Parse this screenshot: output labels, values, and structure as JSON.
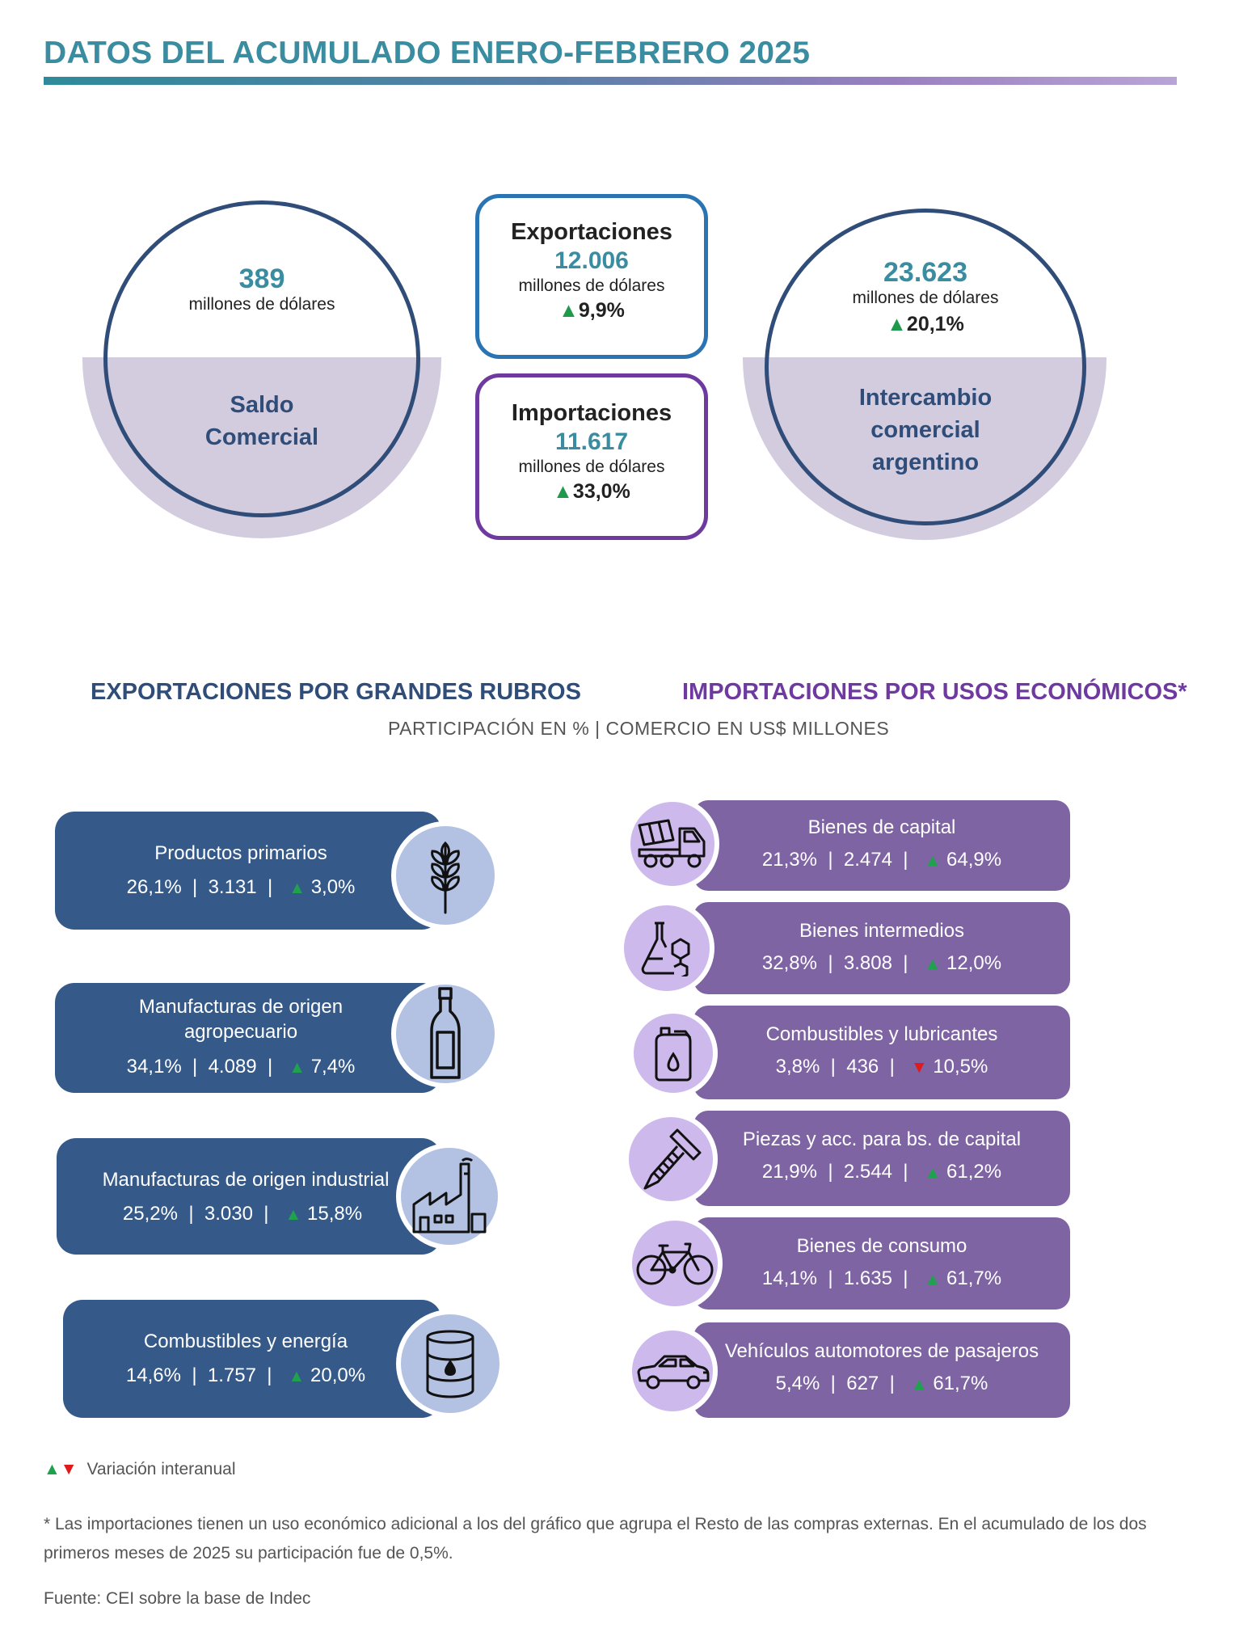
{
  "header": {
    "title": "DATOS DEL ACUMULADO ENERO-FEBRERO 2025"
  },
  "saldo": {
    "value": "389",
    "unit": "millones de dólares",
    "label_1": "Saldo",
    "label_2": "Comercial"
  },
  "exportaciones": {
    "title": "Exportaciones",
    "value": "12.006",
    "unit": "millones de dólares",
    "variation": "9,9%"
  },
  "importaciones": {
    "title": "Importaciones",
    "value": "11.617",
    "unit": "millones de dólares",
    "variation": "33,0%"
  },
  "intercambio": {
    "value": "23.623",
    "unit": "millones de dólares",
    "variation": "20,1%",
    "label_1": "Intercambio",
    "label_2": "comercial",
    "label_3": "argentino"
  },
  "sections": {
    "exports_title": "EXPORTACIONES POR GRANDES RUBROS",
    "imports_title": "IMPORTACIONES POR USOS ECONÓMICOS*",
    "subtitle": "PARTICIPACIÓN EN % | COMERCIO EN US$ MILLONES"
  },
  "colors": {
    "exports": "#355a89",
    "imports": "#7e64a3",
    "up": "#1fa14e",
    "down": "#e01a1a",
    "accent": "#3a8ca0"
  },
  "exports_items": [
    {
      "name": "Productos primarios",
      "share": "26,1%",
      "value": "3.131",
      "variation": "3,0%",
      "direction": "up",
      "icon": "wheat-icon"
    },
    {
      "name_1": "Manufacturas de origen",
      "name_2": "agropecuario",
      "share": "34,1%",
      "value": "4.089",
      "variation": "7,4%",
      "direction": "up",
      "icon": "bottle-icon"
    },
    {
      "name": "Manufacturas de origen industrial",
      "share": "25,2%",
      "value": "3.030",
      "variation": "15,8%",
      "direction": "up",
      "icon": "factory-icon"
    },
    {
      "name": "Combustibles y energía",
      "share": "14,6%",
      "value": "1.757",
      "variation": "20,0%",
      "direction": "up",
      "icon": "oil-barrel-icon"
    }
  ],
  "imports_items": [
    {
      "name": "Bienes de capital",
      "share": "21,3%",
      "value": "2.474",
      "variation": "64,9%",
      "direction": "up",
      "icon": "concrete-mixer-truck-icon"
    },
    {
      "name": "Bienes intermedios",
      "share": "32,8%",
      "value": "3.808",
      "variation": "12,0%",
      "direction": "up",
      "icon": "flask-molecule-icon"
    },
    {
      "name": "Combustibles y lubricantes",
      "share": "3,8%",
      "value": "436",
      "variation": "10,5%",
      "direction": "down",
      "icon": "fuel-can-icon"
    },
    {
      "name": "Piezas y acc. para bs. de capital",
      "share": "21,9%",
      "value": "2.544",
      "variation": "61,2%",
      "direction": "up",
      "icon": "screw-icon"
    },
    {
      "name": "Bienes de consumo",
      "share": "14,1%",
      "value": "1.635",
      "variation": "61,7%",
      "direction": "up",
      "icon": "bicycle-icon"
    },
    {
      "name": "Vehículos automotores de pasajeros",
      "share": "5,4%",
      "value": "627",
      "variation": "61,7%",
      "direction": "up",
      "icon": "car-icon"
    }
  ],
  "footer": {
    "legend": "Variación interanual",
    "note": "* Las importaciones tienen un uso económico adicional a los del gráfico que agrupa el Resto de las compras externas. En el acumulado de los dos primeros meses de 2025 su participación fue de 0,5%.",
    "source": "Fuente: CEI sobre la base de Indec"
  }
}
